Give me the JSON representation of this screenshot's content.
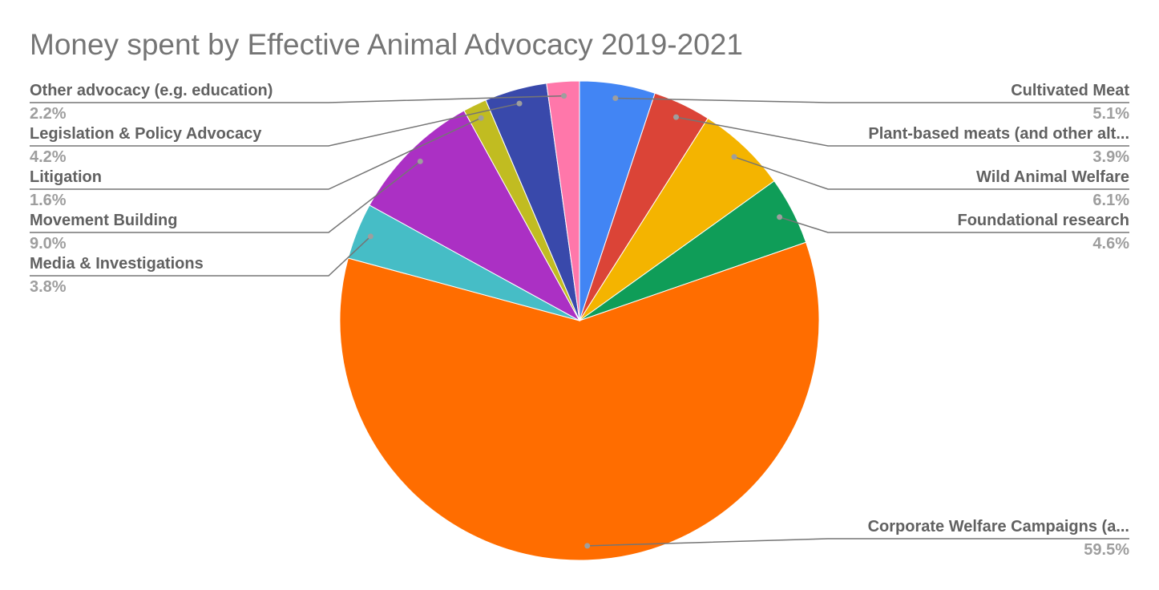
{
  "chart_data": {
    "type": "pie",
    "title": "Money spent by Effective Animal Advocacy 2019-2021",
    "slices": [
      {
        "name": "Cultivated Meat",
        "label": "Cultivated Meat",
        "value": 5.1,
        "value_label": "5.1%",
        "color": "#4285f4",
        "side": "right"
      },
      {
        "name": "Plant-based meats (and other alternative proteins)",
        "label": "Plant-based meats (and other alt...",
        "value": 3.9,
        "value_label": "3.9%",
        "color": "#db4437",
        "side": "right"
      },
      {
        "name": "Wild Animal Welfare",
        "label": "Wild Animal Welfare",
        "value": 6.1,
        "value_label": "6.1%",
        "color": "#f4b400",
        "side": "right"
      },
      {
        "name": "Foundational research",
        "label": "Foundational research",
        "value": 4.6,
        "value_label": "4.6%",
        "color": "#0f9d58",
        "side": "right"
      },
      {
        "name": "Corporate Welfare Campaigns",
        "label": "Corporate Welfare Campaigns (a...",
        "value": 59.5,
        "value_label": "59.5%",
        "color": "#ff6d00",
        "side": "right"
      },
      {
        "name": "Media & Investigations",
        "label": "Media & Investigations",
        "value": 3.8,
        "value_label": "3.8%",
        "color": "#46bdc6",
        "side": "left"
      },
      {
        "name": "Movement Building",
        "label": "Movement Building",
        "value": 9.0,
        "value_label": "9.0%",
        "color": "#ab30c4",
        "side": "left"
      },
      {
        "name": "Litigation",
        "label": "Litigation",
        "value": 1.6,
        "value_label": "1.6%",
        "color": "#c1bc21",
        "side": "left"
      },
      {
        "name": "Legislation & Policy Advocacy",
        "label": "Legislation & Policy Advocacy",
        "value": 4.2,
        "value_label": "4.2%",
        "color": "#3949ab",
        "side": "left"
      },
      {
        "name": "Other advocacy (e.g. education)",
        "label": "Other advocacy (e.g. education)",
        "value": 2.2,
        "value_label": "2.2%",
        "color": "#ff77aa",
        "side": "left"
      }
    ],
    "start_angle": "12 o'clock",
    "direction": "clockwise",
    "legend": "labeled-leader-lines"
  }
}
